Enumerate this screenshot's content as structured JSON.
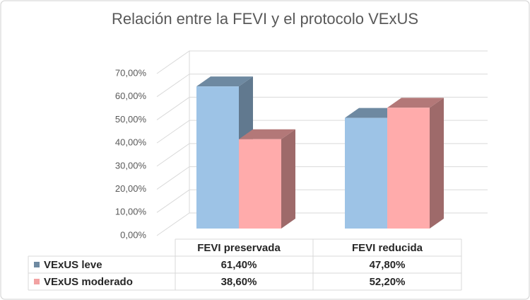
{
  "chart_data": {
    "type": "bar3d",
    "title": "Relación entre la FEVI y el protocolo VExUS",
    "categories": [
      "FEVI preservada",
      "FEVI reducida"
    ],
    "series": [
      {
        "name": "VExUS leve",
        "color": "#9dc3e6",
        "values": [
          61.4,
          47.8
        ],
        "value_labels": [
          "61,40%",
          "47,80%"
        ]
      },
      {
        "name": "VExUS moderado",
        "color": "#ffabab",
        "values": [
          38.6,
          52.2
        ],
        "value_labels": [
          "38,60%",
          "52,20%"
        ]
      }
    ],
    "ylim": [
      0,
      70
    ],
    "yticks": [
      {
        "value": 0,
        "label": "0,00%"
      },
      {
        "value": 10,
        "label": "10,00%"
      },
      {
        "value": 20,
        "label": "20,00%"
      },
      {
        "value": 30,
        "label": "30,00%"
      },
      {
        "value": 40,
        "label": "40,00%"
      },
      {
        "value": 50,
        "label": "50,00%"
      },
      {
        "value": 60,
        "label": "60,00%"
      },
      {
        "value": 70,
        "label": "70,00%"
      }
    ],
    "grid": true,
    "legend": "table"
  }
}
